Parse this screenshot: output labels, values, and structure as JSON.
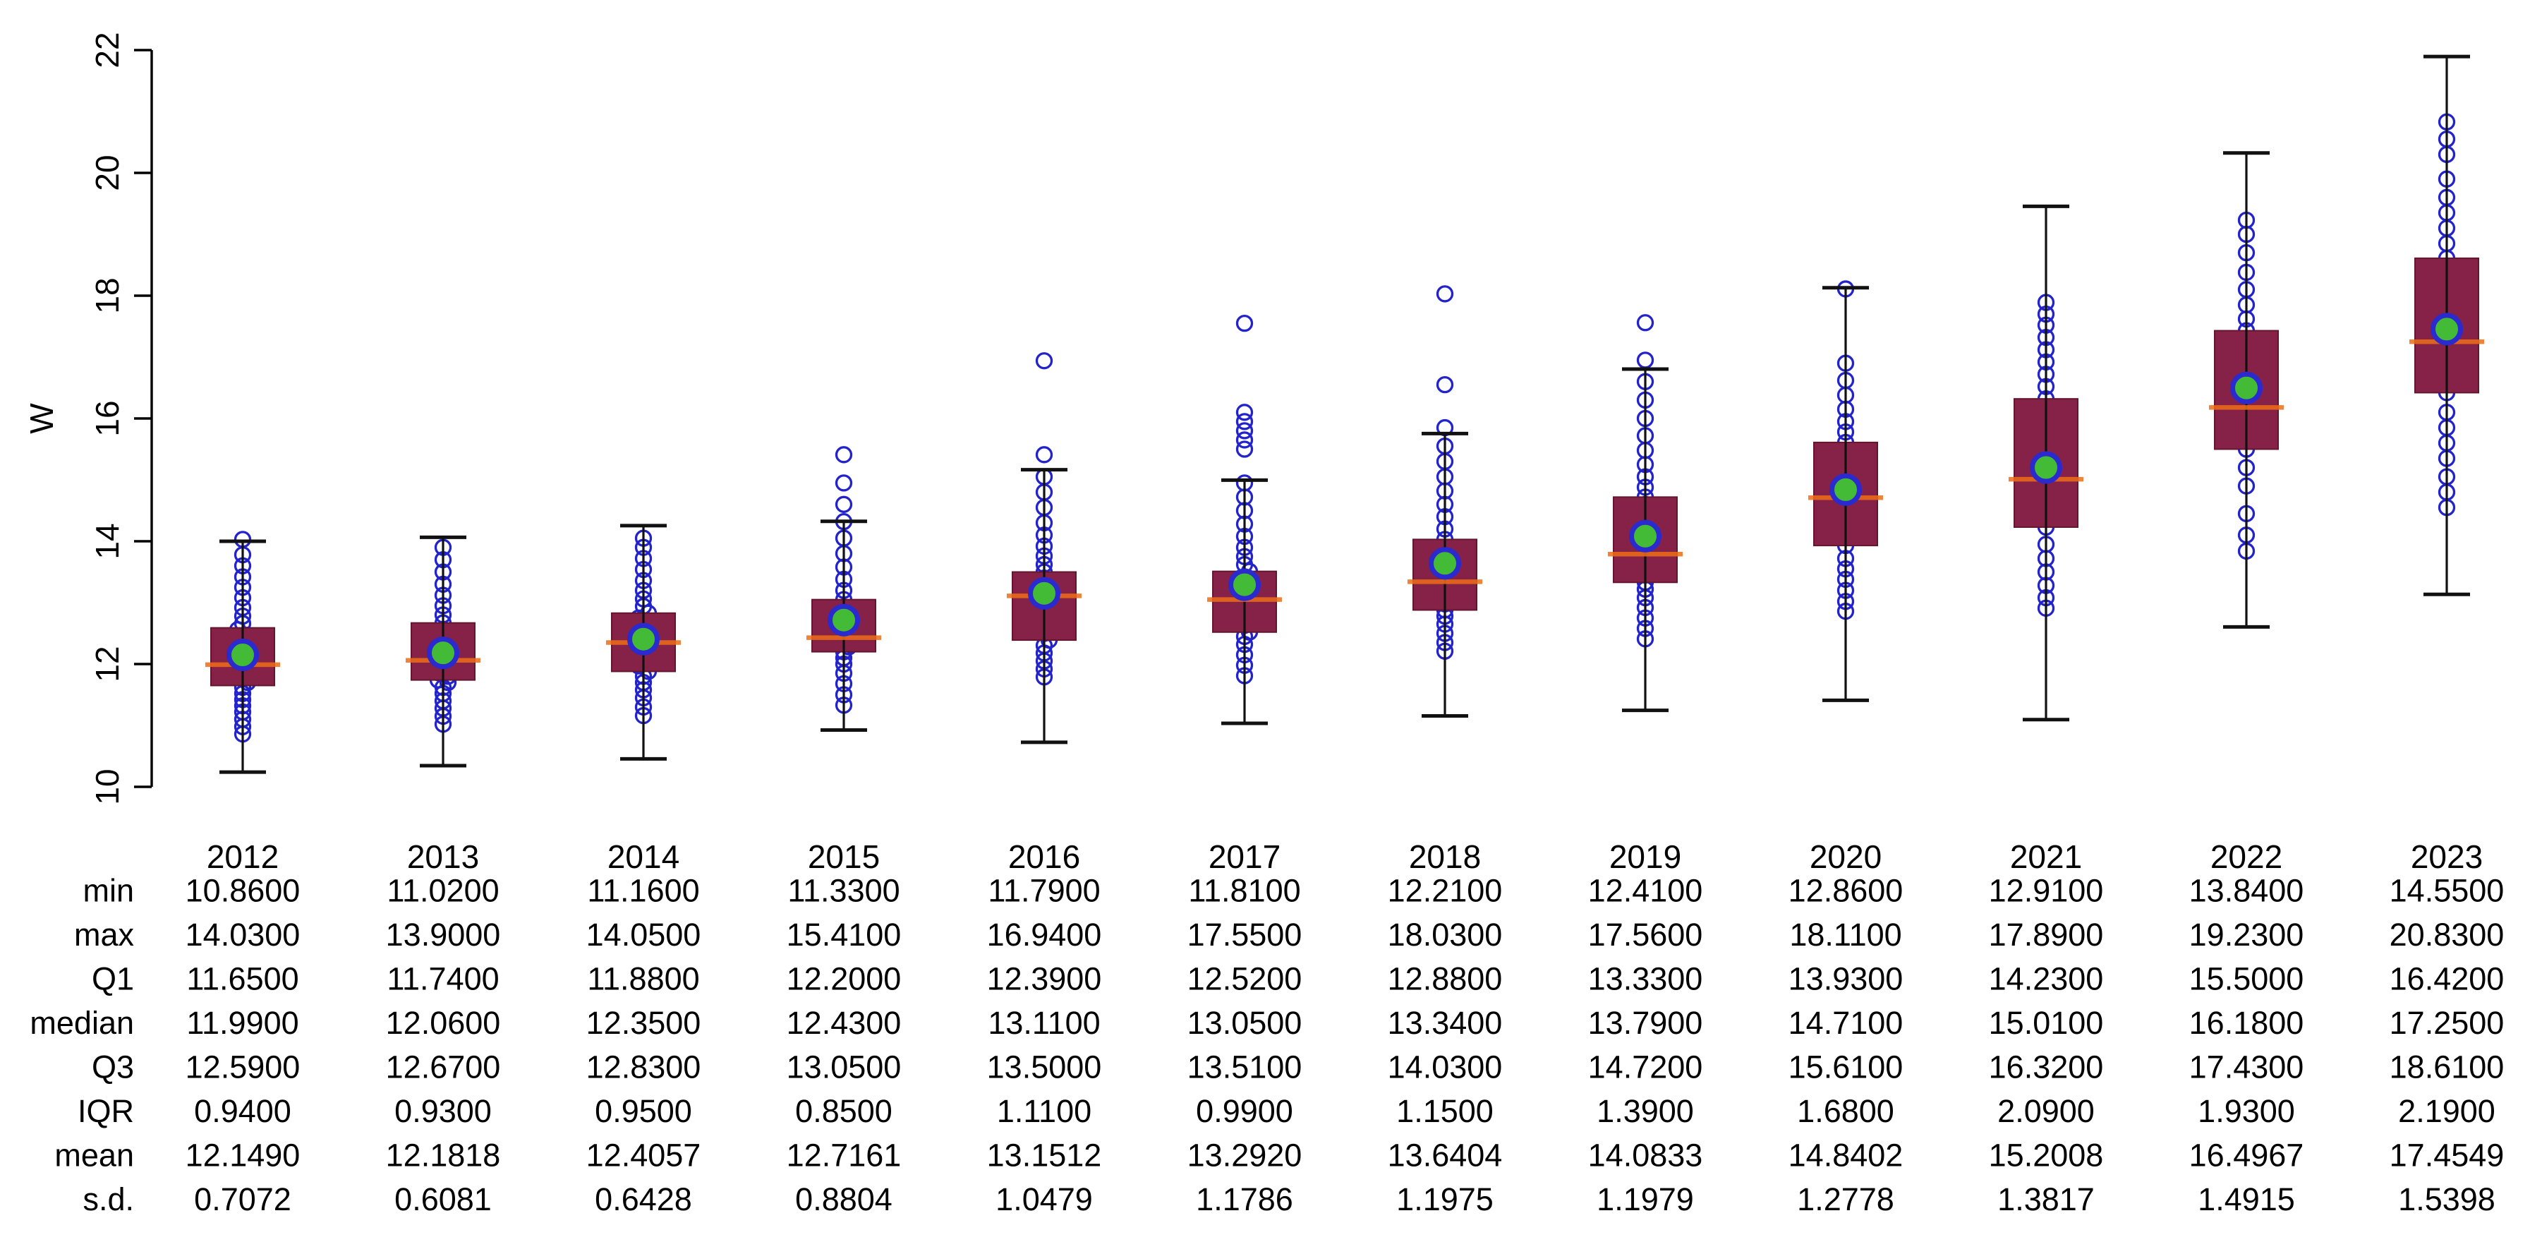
{
  "chart_data": {
    "type": "boxplot",
    "title": "",
    "ylabel": "W",
    "xlabel": "",
    "ylim": [
      10,
      22
    ],
    "yticks": [
      10,
      12,
      14,
      16,
      18,
      20,
      22
    ],
    "grid": false,
    "legend_position": "none",
    "whisker_rule": "caps drawn at Q1 - 1.5*IQR and Q3 + 1.5*IQR; every observation shown as an open circle on the center line",
    "categories": [
      "2012",
      "2013",
      "2014",
      "2015",
      "2016",
      "2017",
      "2018",
      "2019",
      "2020",
      "2021",
      "2022",
      "2023"
    ],
    "series": [
      {
        "year": "2012",
        "min": 10.86,
        "max": 14.03,
        "q1": 11.65,
        "median": 11.99,
        "q3": 12.59,
        "iqr": 0.94,
        "mean": 12.149,
        "sd": 0.7072,
        "points": [
          10.86,
          10.98,
          11.1,
          11.22,
          11.32,
          11.42,
          11.52,
          11.62,
          11.7,
          11.78,
          11.86,
          11.93,
          11.99,
          12.06,
          12.14,
          12.22,
          12.3,
          12.38,
          12.47,
          12.56,
          12.66,
          12.78,
          12.92,
          13.08,
          13.25,
          13.42,
          13.6,
          13.78,
          14.03
        ]
      },
      {
        "year": "2013",
        "min": 11.02,
        "max": 13.9,
        "q1": 11.74,
        "median": 12.06,
        "q3": 12.67,
        "iqr": 0.93,
        "mean": 12.1818,
        "sd": 0.6081,
        "points": [
          11.02,
          11.15,
          11.28,
          11.4,
          11.52,
          11.62,
          11.7,
          11.74,
          11.8,
          11.86,
          11.92,
          11.99,
          12.06,
          12.13,
          12.2,
          12.28,
          12.37,
          12.46,
          12.56,
          12.67,
          12.8,
          12.95,
          13.12,
          13.3,
          13.5,
          13.7,
          13.9
        ]
      },
      {
        "year": "2014",
        "min": 11.16,
        "max": 14.05,
        "q1": 11.88,
        "median": 12.35,
        "q3": 12.83,
        "iqr": 0.95,
        "mean": 12.4057,
        "sd": 0.6428,
        "points": [
          11.16,
          11.3,
          11.45,
          11.58,
          11.7,
          11.8,
          11.88,
          11.97,
          12.06,
          12.16,
          12.26,
          12.35,
          12.43,
          12.51,
          12.59,
          12.67,
          12.75,
          12.83,
          12.94,
          13.06,
          13.2,
          13.36,
          13.54,
          13.72,
          13.9,
          14.05
        ]
      },
      {
        "year": "2015",
        "min": 11.33,
        "max": 15.41,
        "q1": 12.2,
        "median": 12.43,
        "q3": 13.05,
        "iqr": 0.85,
        "mean": 12.7161,
        "sd": 0.8804,
        "points": [
          11.33,
          11.5,
          11.68,
          11.85,
          12.0,
          12.1,
          12.2,
          12.28,
          12.35,
          12.4,
          12.43,
          12.47,
          12.52,
          12.6,
          12.7,
          12.81,
          12.93,
          13.05,
          13.2,
          13.38,
          13.58,
          13.8,
          14.05,
          14.32,
          14.6,
          14.95,
          15.41
        ]
      },
      {
        "year": "2016",
        "min": 11.79,
        "max": 16.94,
        "q1": 12.39,
        "median": 13.11,
        "q3": 13.5,
        "iqr": 1.11,
        "mean": 13.1512,
        "sd": 1.0479,
        "points": [
          11.79,
          11.92,
          12.05,
          12.18,
          12.3,
          12.39,
          12.5,
          12.62,
          12.76,
          12.9,
          13.0,
          13.11,
          13.2,
          13.3,
          13.4,
          13.5,
          13.62,
          13.76,
          13.92,
          14.1,
          14.3,
          14.55,
          14.8,
          15.05,
          15.41,
          16.94
        ]
      },
      {
        "year": "2017",
        "min": 11.81,
        "max": 17.55,
        "q1": 12.52,
        "median": 13.05,
        "q3": 13.51,
        "iqr": 0.99,
        "mean": 13.292,
        "sd": 1.1786,
        "points": [
          11.81,
          11.98,
          12.15,
          12.32,
          12.45,
          12.52,
          12.63,
          12.74,
          12.85,
          12.95,
          13.05,
          13.14,
          13.23,
          13.32,
          13.42,
          13.51,
          13.62,
          13.75,
          13.9,
          14.08,
          14.28,
          14.5,
          14.72,
          14.95,
          15.5,
          15.65,
          15.8,
          15.95,
          16.1,
          17.55
        ]
      },
      {
        "year": "2018",
        "min": 12.21,
        "max": 18.03,
        "q1": 12.88,
        "median": 13.34,
        "q3": 14.03,
        "iqr": 1.15,
        "mean": 13.6404,
        "sd": 1.1975,
        "points": [
          12.21,
          12.35,
          12.5,
          12.65,
          12.78,
          12.88,
          12.98,
          13.1,
          13.22,
          13.34,
          13.45,
          13.58,
          13.72,
          13.88,
          14.03,
          14.2,
          14.4,
          14.6,
          14.82,
          15.05,
          15.3,
          15.55,
          15.85,
          16.55,
          18.03
        ]
      },
      {
        "year": "2019",
        "min": 12.41,
        "max": 17.56,
        "q1": 13.33,
        "median": 13.79,
        "q3": 14.72,
        "iqr": 1.39,
        "mean": 14.0833,
        "sd": 1.1979,
        "points": [
          12.41,
          12.58,
          12.75,
          12.92,
          13.08,
          13.22,
          13.33,
          13.45,
          13.57,
          13.68,
          13.79,
          13.9,
          14.02,
          14.15,
          14.3,
          14.45,
          14.6,
          14.72,
          14.88,
          15.05,
          15.25,
          15.48,
          15.72,
          16.0,
          16.3,
          16.6,
          16.95,
          17.56
        ]
      },
      {
        "year": "2020",
        "min": 12.86,
        "max": 18.11,
        "q1": 13.93,
        "median": 14.71,
        "q3": 15.61,
        "iqr": 1.68,
        "mean": 14.8402,
        "sd": 1.2778,
        "points": [
          12.86,
          13.02,
          13.2,
          13.38,
          13.55,
          13.72,
          13.93,
          14.08,
          14.25,
          14.42,
          14.58,
          14.71,
          14.85,
          15.0,
          15.15,
          15.32,
          15.48,
          15.61,
          15.78,
          15.95,
          16.15,
          16.38,
          16.62,
          16.9,
          18.11
        ]
      },
      {
        "year": "2021",
        "min": 12.91,
        "max": 17.89,
        "q1": 14.23,
        "median": 15.01,
        "q3": 16.32,
        "iqr": 2.09,
        "mean": 15.2008,
        "sd": 1.3817,
        "points": [
          12.91,
          13.08,
          13.28,
          13.5,
          13.72,
          13.95,
          14.23,
          14.4,
          14.58,
          14.75,
          14.9,
          15.01,
          15.15,
          15.3,
          15.48,
          15.68,
          15.9,
          16.1,
          16.32,
          16.52,
          16.72,
          16.92,
          17.12,
          17.32,
          17.52,
          17.7,
          17.89
        ]
      },
      {
        "year": "2022",
        "min": 13.84,
        "max": 19.23,
        "q1": 15.5,
        "median": 16.18,
        "q3": 17.43,
        "iqr": 1.93,
        "mean": 16.4967,
        "sd": 1.4915,
        "points": [
          13.84,
          14.1,
          14.45,
          14.9,
          15.2,
          15.5,
          15.68,
          15.85,
          16.0,
          16.12,
          16.18,
          16.3,
          16.45,
          16.62,
          16.8,
          17.0,
          17.2,
          17.43,
          17.62,
          17.85,
          18.1,
          18.38,
          18.7,
          19.0,
          19.23
        ]
      },
      {
        "year": "2023",
        "min": 14.55,
        "max": 20.83,
        "q1": 16.42,
        "median": 17.25,
        "q3": 18.61,
        "iqr": 2.19,
        "mean": 17.4549,
        "sd": 1.5398,
        "points": [
          14.55,
          14.8,
          15.05,
          15.35,
          15.6,
          15.85,
          16.1,
          16.42,
          16.6,
          16.78,
          16.95,
          17.1,
          17.25,
          17.4,
          17.58,
          17.78,
          18.0,
          18.2,
          18.4,
          18.61,
          18.85,
          19.1,
          19.35,
          19.6,
          19.9,
          20.3,
          20.55,
          20.83
        ]
      }
    ]
  },
  "table": {
    "row_labels": [
      "min",
      "max",
      "Q1",
      "median",
      "Q3",
      "IQR",
      "mean",
      "s.d."
    ],
    "columns": [
      {
        "year": "2012",
        "cells": [
          "10.8600",
          "14.0300",
          "11.6500",
          "11.9900",
          "12.5900",
          "0.9400",
          "12.1490",
          "0.7072"
        ]
      },
      {
        "year": "2013",
        "cells": [
          "11.0200",
          "13.9000",
          "11.7400",
          "12.0600",
          "12.6700",
          "0.9300",
          "12.1818",
          "0.6081"
        ]
      },
      {
        "year": "2014",
        "cells": [
          "11.1600",
          "14.0500",
          "11.8800",
          "12.3500",
          "12.8300",
          "0.9500",
          "12.4057",
          "0.6428"
        ]
      },
      {
        "year": "2015",
        "cells": [
          "11.3300",
          "15.4100",
          "12.2000",
          "12.4300",
          "13.0500",
          "0.8500",
          "12.7161",
          "0.8804"
        ]
      },
      {
        "year": "2016",
        "cells": [
          "11.7900",
          "16.9400",
          "12.3900",
          "13.1100",
          "13.5000",
          "1.1100",
          "13.1512",
          "1.0479"
        ]
      },
      {
        "year": "2017",
        "cells": [
          "11.8100",
          "17.5500",
          "12.5200",
          "13.0500",
          "13.5100",
          "0.9900",
          "13.2920",
          "1.1786"
        ]
      },
      {
        "year": "2018",
        "cells": [
          "12.2100",
          "18.0300",
          "12.8800",
          "13.3400",
          "14.0300",
          "1.1500",
          "13.6404",
          "1.1975"
        ]
      },
      {
        "year": "2019",
        "cells": [
          "12.4100",
          "17.5600",
          "13.3300",
          "13.7900",
          "14.7200",
          "1.3900",
          "14.0833",
          "1.1979"
        ]
      },
      {
        "year": "2020",
        "cells": [
          "12.8600",
          "18.1100",
          "13.9300",
          "14.7100",
          "15.6100",
          "1.6800",
          "14.8402",
          "1.2778"
        ]
      },
      {
        "year": "2021",
        "cells": [
          "12.9100",
          "17.8900",
          "14.2300",
          "15.0100",
          "16.3200",
          "2.0900",
          "15.2008",
          "1.3817"
        ]
      },
      {
        "year": "2022",
        "cells": [
          "13.8400",
          "19.2300",
          "15.5000",
          "16.1800",
          "17.4300",
          "1.9300",
          "16.4967",
          "1.4915"
        ]
      },
      {
        "year": "2023",
        "cells": [
          "14.5500",
          "20.8300",
          "16.4200",
          "17.2500",
          "18.6100",
          "2.1900",
          "17.4549",
          "1.5398"
        ]
      }
    ]
  },
  "colors": {
    "box_fill": "#862247",
    "box_edge": "#64162f",
    "median_line": "#ee6e18",
    "mean_fill": "#44bb37",
    "mean_ring": "#2a2ace",
    "point_stroke": "#2323cc",
    "whisker": "#111111",
    "axis": "#000000",
    "text": "#000000",
    "background": "#ffffff"
  }
}
